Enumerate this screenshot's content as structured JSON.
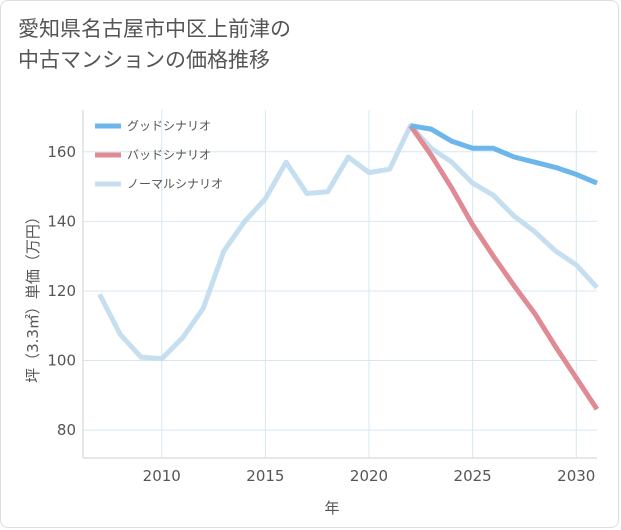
{
  "title_lines": [
    "愛知県名古屋市中区上前津の",
    "中古マンションの価格推移"
  ],
  "chart_data": {
    "type": "line",
    "xlabel": "年",
    "ylabel": "坪（3.3㎡）単価（万円）",
    "xlim": [
      2006.2,
      2031
    ],
    "ylim": [
      72,
      172
    ],
    "xticks": [
      2010,
      2015,
      2020,
      2025,
      2030
    ],
    "yticks": [
      80,
      100,
      120,
      140,
      160
    ],
    "grid": true,
    "legend_position": "top-left",
    "series": [
      {
        "name": "グッドシナリオ",
        "color": "#6cb6ec",
        "points": [
          [
            2022,
            167.5
          ],
          [
            2023,
            166.5
          ],
          [
            2024,
            163
          ],
          [
            2025,
            161
          ],
          [
            2026,
            161
          ],
          [
            2027,
            158.5
          ],
          [
            2028,
            157
          ],
          [
            2029,
            155.5
          ],
          [
            2030,
            153.5
          ],
          [
            2031,
            151
          ]
        ]
      },
      {
        "name": "バッドシナリオ",
        "color": "#e08a93",
        "points": [
          [
            2022,
            167.5
          ],
          [
            2023,
            159
          ],
          [
            2024,
            149.5
          ],
          [
            2025,
            139
          ],
          [
            2026,
            130
          ],
          [
            2027,
            121.5
          ],
          [
            2028,
            113.5
          ],
          [
            2029,
            104
          ],
          [
            2030,
            95
          ],
          [
            2031,
            86
          ]
        ]
      },
      {
        "name": "ノーマルシナリオ",
        "color": "#c5dff0",
        "points": [
          [
            2007,
            119
          ],
          [
            2008,
            107.5
          ],
          [
            2009,
            101
          ],
          [
            2010,
            100.5
          ],
          [
            2011,
            106.5
          ],
          [
            2012,
            115
          ],
          [
            2013,
            131.5
          ],
          [
            2014,
            140
          ],
          [
            2015,
            146.5
          ],
          [
            2016,
            157
          ],
          [
            2017,
            148
          ],
          [
            2018,
            148.5
          ],
          [
            2019,
            158.5
          ],
          [
            2020,
            154
          ],
          [
            2021,
            155
          ],
          [
            2022,
            167.5
          ],
          [
            2023,
            161
          ],
          [
            2024,
            157
          ],
          [
            2025,
            151
          ],
          [
            2026,
            147.5
          ],
          [
            2027,
            141.5
          ],
          [
            2028,
            137
          ],
          [
            2029,
            131.5
          ],
          [
            2030,
            127.5
          ],
          [
            2031,
            121
          ]
        ]
      }
    ]
  }
}
